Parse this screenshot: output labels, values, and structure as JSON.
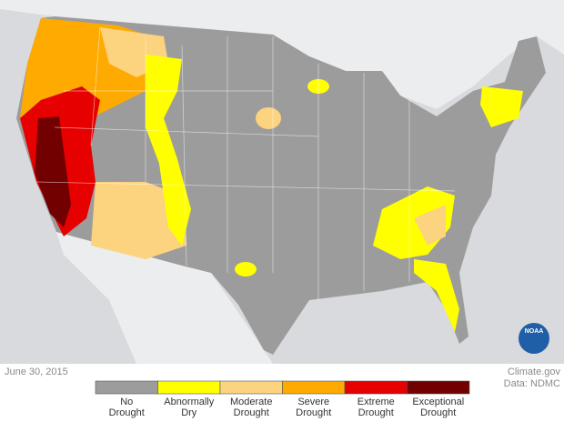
{
  "date": "June 30, 2015",
  "credit": {
    "source": "Climate.gov",
    "data": "Data: NDMC"
  },
  "logo": "NOAA",
  "legend": [
    {
      "label": [
        "No",
        "Drought"
      ],
      "color": "#9c9c9c"
    },
    {
      "label": [
        "Abnormally",
        "Dry"
      ],
      "color": "#ffff00"
    },
    {
      "label": [
        "Moderate",
        "Drought"
      ],
      "color": "#fcd37f"
    },
    {
      "label": [
        "Severe",
        "Drought"
      ],
      "color": "#ffaa00"
    },
    {
      "label": [
        "Extreme",
        "Drought"
      ],
      "color": "#e60000"
    },
    {
      "label": [
        "Exceptional",
        "Drought"
      ],
      "color": "#730000"
    }
  ]
}
